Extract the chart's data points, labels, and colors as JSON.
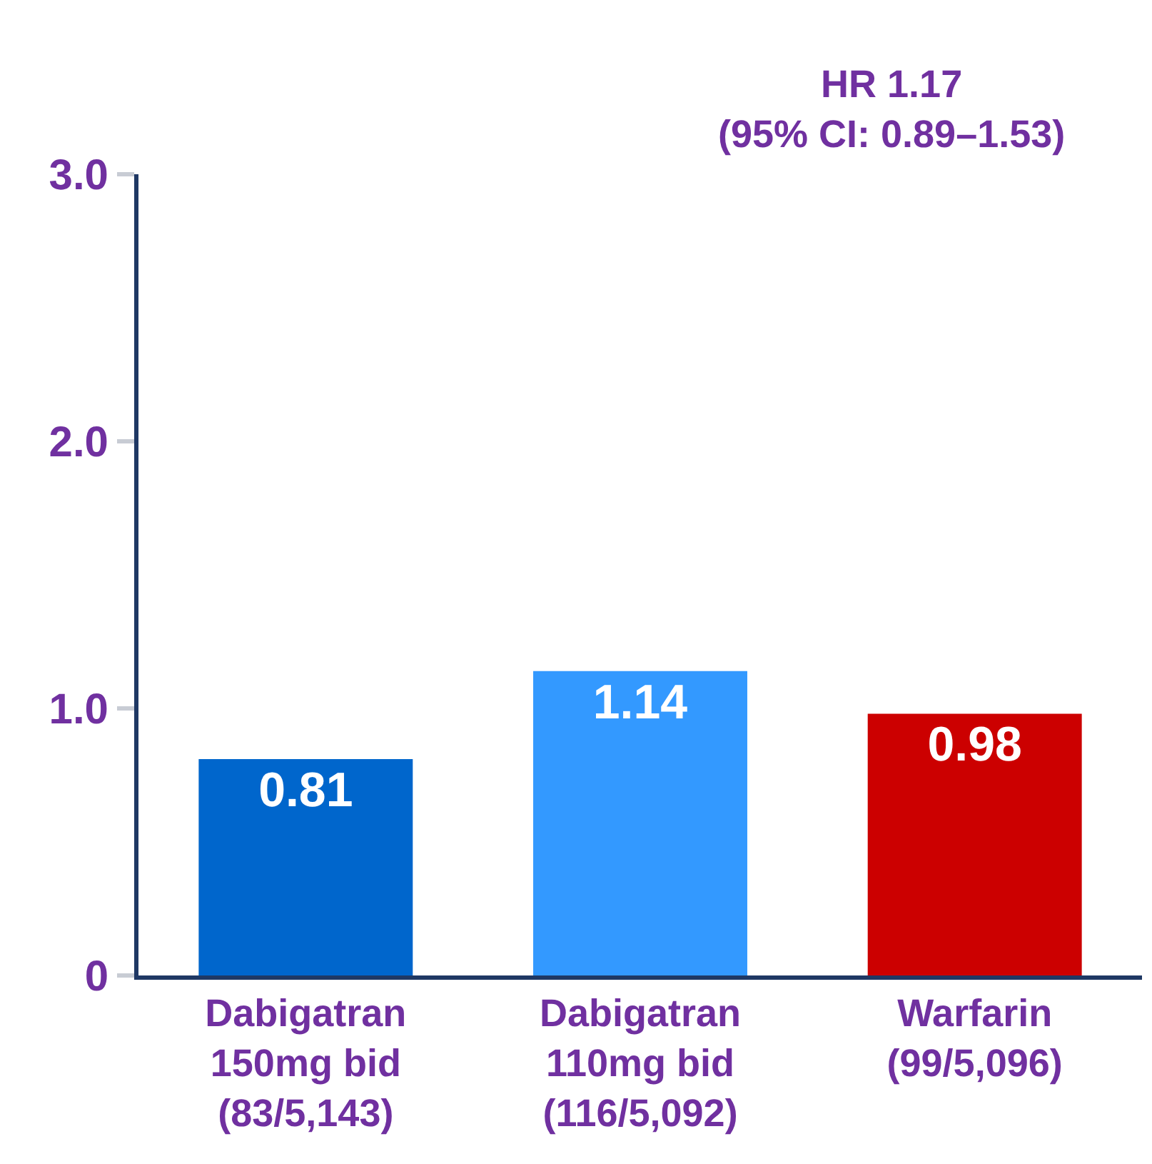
{
  "chart_data": {
    "type": "bar",
    "categories": [
      "Dabigatran\n150mg bid\n(83/5,143)",
      "Dabigatran\n110mg bid\n(116/5,092)",
      "Warfarin\n(99/5,096)"
    ],
    "values": [
      0.81,
      1.14,
      0.98
    ],
    "colors": [
      "#0066cc",
      "#3399ff",
      "#cc0000"
    ],
    "ylim": [
      0,
      3.0
    ],
    "yticks": [
      0,
      {
        "value": 1,
        "label": "1.0"
      },
      {
        "value": 2,
        "label": "2.0"
      },
      {
        "value": 3,
        "label": "3.0"
      }
    ],
    "data_labels": true,
    "legend": false,
    "annotations": [
      "HR 1.17\n(95% CI: 0.89–1.53)"
    ]
  }
}
